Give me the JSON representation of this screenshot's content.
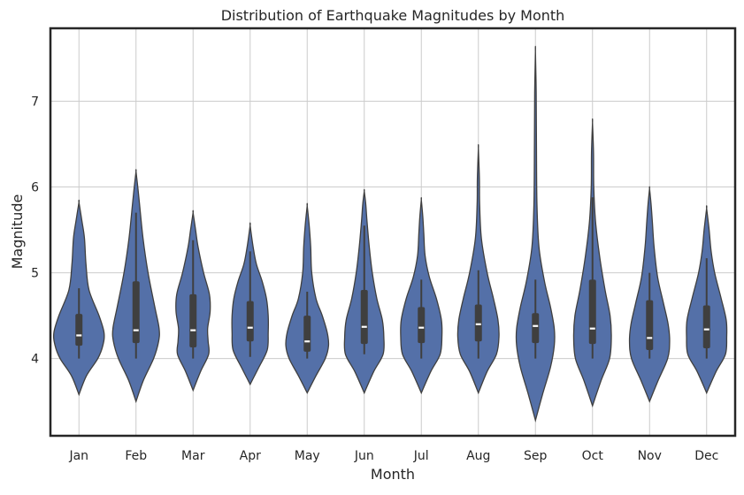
{
  "chart_data": {
    "type": "violin",
    "title": "Distribution of Earthquake Magnitudes by Month",
    "xlabel": "Month",
    "ylabel": "Magnitude",
    "ylim": [
      3.1,
      7.85
    ],
    "yticks": [
      4,
      5,
      6,
      7
    ],
    "grid": true,
    "color": "#5470a8",
    "categories": [
      "Jan",
      "Feb",
      "Mar",
      "Apr",
      "May",
      "Jun",
      "Jul",
      "Aug",
      "Sep",
      "Oct",
      "Nov",
      "Dec"
    ],
    "violins": [
      {
        "min": 3.58,
        "max": 5.82,
        "q1": 4.15,
        "median": 4.27,
        "q3": 4.52,
        "whisker_low": 4.0,
        "whisker_high": 4.82,
        "profile": [
          [
            3.58,
            0
          ],
          [
            3.8,
            0.3
          ],
          [
            4.0,
            0.75
          ],
          [
            4.15,
            0.95
          ],
          [
            4.3,
            1.0
          ],
          [
            4.5,
            0.8
          ],
          [
            4.8,
            0.4
          ],
          [
            5.1,
            0.28
          ],
          [
            5.4,
            0.22
          ],
          [
            5.6,
            0.12
          ],
          [
            5.82,
            0
          ]
        ]
      },
      {
        "min": 3.5,
        "max": 6.18,
        "q1": 4.18,
        "median": 4.33,
        "q3": 4.9,
        "whisker_low": 4.0,
        "whisker_high": 5.7,
        "profile": [
          [
            3.5,
            0
          ],
          [
            3.75,
            0.3
          ],
          [
            4.0,
            0.7
          ],
          [
            4.2,
            0.9
          ],
          [
            4.35,
            0.92
          ],
          [
            4.6,
            0.75
          ],
          [
            5.0,
            0.48
          ],
          [
            5.4,
            0.28
          ],
          [
            5.8,
            0.14
          ],
          [
            6.0,
            0.07
          ],
          [
            6.18,
            0
          ]
        ]
      },
      {
        "min": 3.63,
        "max": 5.7,
        "q1": 4.13,
        "median": 4.33,
        "q3": 4.75,
        "whisker_low": 4.0,
        "whisker_high": 5.38,
        "profile": [
          [
            3.63,
            0
          ],
          [
            3.85,
            0.3
          ],
          [
            4.05,
            0.62
          ],
          [
            4.2,
            0.6
          ],
          [
            4.35,
            0.58
          ],
          [
            4.55,
            0.68
          ],
          [
            4.75,
            0.65
          ],
          [
            5.0,
            0.42
          ],
          [
            5.3,
            0.2
          ],
          [
            5.5,
            0.1
          ],
          [
            5.7,
            0
          ]
        ]
      },
      {
        "min": 3.7,
        "max": 5.55,
        "q1": 4.2,
        "median": 4.36,
        "q3": 4.67,
        "whisker_low": 4.02,
        "whisker_high": 5.25,
        "profile": [
          [
            3.7,
            0
          ],
          [
            3.9,
            0.35
          ],
          [
            4.1,
            0.68
          ],
          [
            4.3,
            0.72
          ],
          [
            4.5,
            0.72
          ],
          [
            4.7,
            0.65
          ],
          [
            4.9,
            0.48
          ],
          [
            5.1,
            0.25
          ],
          [
            5.3,
            0.12
          ],
          [
            5.55,
            0
          ]
        ]
      },
      {
        "min": 3.6,
        "max": 5.78,
        "q1": 4.08,
        "median": 4.2,
        "q3": 4.5,
        "whisker_low": 4.0,
        "whisker_high": 4.78,
        "profile": [
          [
            3.6,
            0
          ],
          [
            3.8,
            0.35
          ],
          [
            4.0,
            0.72
          ],
          [
            4.15,
            0.85
          ],
          [
            4.3,
            0.8
          ],
          [
            4.5,
            0.6
          ],
          [
            4.7,
            0.35
          ],
          [
            5.0,
            0.18
          ],
          [
            5.3,
            0.14
          ],
          [
            5.55,
            0.08
          ],
          [
            5.78,
            0
          ]
        ]
      },
      {
        "min": 3.6,
        "max": 5.95,
        "q1": 4.17,
        "median": 4.37,
        "q3": 4.8,
        "whisker_low": 4.05,
        "whisker_high": 5.55,
        "profile": [
          [
            3.6,
            0
          ],
          [
            3.85,
            0.38
          ],
          [
            4.05,
            0.75
          ],
          [
            4.25,
            0.78
          ],
          [
            4.45,
            0.72
          ],
          [
            4.7,
            0.5
          ],
          [
            5.0,
            0.32
          ],
          [
            5.3,
            0.2
          ],
          [
            5.6,
            0.11
          ],
          [
            5.8,
            0.06
          ],
          [
            5.95,
            0
          ]
        ]
      },
      {
        "min": 3.6,
        "max": 5.85,
        "q1": 4.18,
        "median": 4.36,
        "q3": 4.6,
        "whisker_low": 4.0,
        "whisker_high": 4.92,
        "profile": [
          [
            3.6,
            0
          ],
          [
            3.85,
            0.38
          ],
          [
            4.05,
            0.75
          ],
          [
            4.25,
            0.82
          ],
          [
            4.45,
            0.8
          ],
          [
            4.7,
            0.6
          ],
          [
            4.95,
            0.32
          ],
          [
            5.2,
            0.15
          ],
          [
            5.45,
            0.1
          ],
          [
            5.65,
            0.06
          ],
          [
            5.85,
            0
          ]
        ]
      },
      {
        "min": 3.6,
        "max": 6.45,
        "q1": 4.2,
        "median": 4.4,
        "q3": 4.63,
        "whisker_low": 4.0,
        "whisker_high": 5.03,
        "profile": [
          [
            3.6,
            0
          ],
          [
            3.85,
            0.35
          ],
          [
            4.05,
            0.72
          ],
          [
            4.25,
            0.82
          ],
          [
            4.45,
            0.78
          ],
          [
            4.7,
            0.6
          ],
          [
            5.0,
            0.35
          ],
          [
            5.4,
            0.12
          ],
          [
            5.8,
            0.05
          ],
          [
            6.1,
            0.04
          ],
          [
            6.45,
            0
          ]
        ]
      },
      {
        "min": 3.28,
        "max": 7.58,
        "q1": 4.18,
        "median": 4.38,
        "q3": 4.53,
        "whisker_low": 4.0,
        "whisker_high": 4.92,
        "profile": [
          [
            3.28,
            0
          ],
          [
            3.6,
            0.3
          ],
          [
            3.9,
            0.6
          ],
          [
            4.15,
            0.75
          ],
          [
            4.35,
            0.75
          ],
          [
            4.6,
            0.6
          ],
          [
            4.9,
            0.36
          ],
          [
            5.3,
            0.14
          ],
          [
            5.8,
            0.06
          ],
          [
            6.5,
            0.04
          ],
          [
            7.1,
            0.03
          ],
          [
            7.58,
            0
          ]
        ]
      },
      {
        "min": 3.45,
        "max": 6.75,
        "q1": 4.17,
        "median": 4.35,
        "q3": 4.92,
        "whisker_low": 4.0,
        "whisker_high": 5.88,
        "profile": [
          [
            3.45,
            0
          ],
          [
            3.75,
            0.35
          ],
          [
            4.0,
            0.68
          ],
          [
            4.25,
            0.75
          ],
          [
            4.5,
            0.7
          ],
          [
            4.8,
            0.5
          ],
          [
            5.2,
            0.28
          ],
          [
            5.6,
            0.12
          ],
          [
            6.0,
            0.05
          ],
          [
            6.4,
            0.04
          ],
          [
            6.75,
            0
          ]
        ]
      },
      {
        "min": 3.5,
        "max": 5.98,
        "q1": 4.1,
        "median": 4.24,
        "q3": 4.68,
        "whisker_low": 4.0,
        "whisker_high": 5.0,
        "profile": [
          [
            3.5,
            0
          ],
          [
            3.75,
            0.35
          ],
          [
            4.0,
            0.72
          ],
          [
            4.2,
            0.8
          ],
          [
            4.4,
            0.74
          ],
          [
            4.65,
            0.55
          ],
          [
            4.95,
            0.32
          ],
          [
            5.3,
            0.18
          ],
          [
            5.6,
            0.11
          ],
          [
            5.8,
            0.06
          ],
          [
            5.98,
            0
          ]
        ]
      },
      {
        "min": 3.6,
        "max": 5.75,
        "q1": 4.12,
        "median": 4.34,
        "q3": 4.62,
        "whisker_low": 4.0,
        "whisker_high": 5.17,
        "profile": [
          [
            3.6,
            0
          ],
          [
            3.85,
            0.38
          ],
          [
            4.05,
            0.75
          ],
          [
            4.25,
            0.8
          ],
          [
            4.45,
            0.78
          ],
          [
            4.7,
            0.58
          ],
          [
            5.0,
            0.32
          ],
          [
            5.25,
            0.18
          ],
          [
            5.5,
            0.1
          ],
          [
            5.75,
            0
          ]
        ]
      }
    ]
  }
}
